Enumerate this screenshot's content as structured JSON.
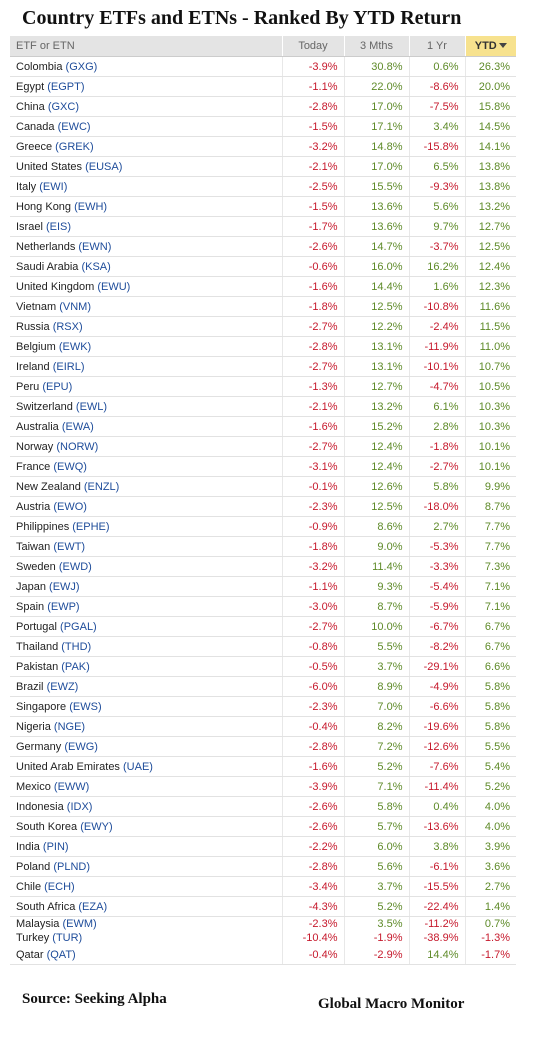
{
  "title": "Country ETFs and ETNs - Ranked By YTD Return",
  "headers": {
    "name": "ETF or ETN",
    "today": "Today",
    "three_months": "3 Mths",
    "one_year": "1 Yr",
    "ytd": "YTD"
  },
  "sorted_by": "YTD",
  "sort_direction": "descending",
  "colors": {
    "positive": "#5e8a28",
    "negative": "#c6192c",
    "ticker": "#1e4c9a",
    "header_bg": "#e4e4e4",
    "sorted_header_bg": "#f7e28e"
  },
  "rows": [
    {
      "country": "Colombia",
      "ticker": "(GXG)",
      "today": "-3.9%",
      "three_months": "30.8%",
      "one_year": "0.6%",
      "ytd": "26.3%"
    },
    {
      "country": "Egypt",
      "ticker": "(EGPT)",
      "today": "-1.1%",
      "three_months": "22.0%",
      "one_year": "-8.6%",
      "ytd": "20.0%"
    },
    {
      "country": "China",
      "ticker": "(GXC)",
      "today": "-2.8%",
      "three_months": "17.0%",
      "one_year": "-7.5%",
      "ytd": "15.8%"
    },
    {
      "country": "Canada",
      "ticker": "(EWC)",
      "today": "-1.5%",
      "three_months": "17.1%",
      "one_year": "3.4%",
      "ytd": "14.5%"
    },
    {
      "country": "Greece",
      "ticker": "(GREK)",
      "today": "-3.2%",
      "three_months": "14.8%",
      "one_year": "-15.8%",
      "ytd": "14.1%"
    },
    {
      "country": "United States",
      "ticker": "(EUSA)",
      "today": "-2.1%",
      "three_months": "17.0%",
      "one_year": "6.5%",
      "ytd": "13.8%"
    },
    {
      "country": "Italy",
      "ticker": "(EWI)",
      "today": "-2.5%",
      "three_months": "15.5%",
      "one_year": "-9.3%",
      "ytd": "13.8%"
    },
    {
      "country": "Hong Kong",
      "ticker": "(EWH)",
      "today": "-1.5%",
      "three_months": "13.6%",
      "one_year": "5.6%",
      "ytd": "13.2%"
    },
    {
      "country": "Israel",
      "ticker": "(EIS)",
      "today": "-1.7%",
      "three_months": "13.6%",
      "one_year": "9.7%",
      "ytd": "12.7%"
    },
    {
      "country": "Netherlands",
      "ticker": "(EWN)",
      "today": "-2.6%",
      "three_months": "14.7%",
      "one_year": "-3.7%",
      "ytd": "12.5%"
    },
    {
      "country": "Saudi Arabia",
      "ticker": "(KSA)",
      "today": "-0.6%",
      "three_months": "16.0%",
      "one_year": "16.2%",
      "ytd": "12.4%"
    },
    {
      "country": "United Kingdom",
      "ticker": "(EWU)",
      "today": "-1.6%",
      "three_months": "14.4%",
      "one_year": "1.6%",
      "ytd": "12.3%"
    },
    {
      "country": "Vietnam",
      "ticker": "(VNM)",
      "today": "-1.8%",
      "three_months": "12.5%",
      "one_year": "-10.8%",
      "ytd": "11.6%"
    },
    {
      "country": "Russia",
      "ticker": "(RSX)",
      "today": "-2.7%",
      "three_months": "12.2%",
      "one_year": "-2.4%",
      "ytd": "11.5%"
    },
    {
      "country": "Belgium",
      "ticker": "(EWK)",
      "today": "-2.8%",
      "three_months": "13.1%",
      "one_year": "-11.9%",
      "ytd": "11.0%"
    },
    {
      "country": "Ireland",
      "ticker": "(EIRL)",
      "today": "-2.7%",
      "three_months": "13.1%",
      "one_year": "-10.1%",
      "ytd": "10.7%"
    },
    {
      "country": "Peru",
      "ticker": "(EPU)",
      "today": "-1.3%",
      "three_months": "12.7%",
      "one_year": "-4.7%",
      "ytd": "10.5%"
    },
    {
      "country": "Switzerland",
      "ticker": "(EWL)",
      "today": "-2.1%",
      "three_months": "13.2%",
      "one_year": "6.1%",
      "ytd": "10.3%"
    },
    {
      "country": "Australia",
      "ticker": "(EWA)",
      "today": "-1.6%",
      "three_months": "15.2%",
      "one_year": "2.8%",
      "ytd": "10.3%"
    },
    {
      "country": "Norway",
      "ticker": "(NORW)",
      "today": "-2.7%",
      "three_months": "12.4%",
      "one_year": "-1.8%",
      "ytd": "10.1%"
    },
    {
      "country": "France",
      "ticker": "(EWQ)",
      "today": "-3.1%",
      "three_months": "12.4%",
      "one_year": "-2.7%",
      "ytd": "10.1%"
    },
    {
      "country": "New Zealand",
      "ticker": "(ENZL)",
      "today": "-0.1%",
      "three_months": "12.6%",
      "one_year": "5.8%",
      "ytd": "9.9%"
    },
    {
      "country": "Austria",
      "ticker": "(EWO)",
      "today": "-2.3%",
      "three_months": "12.5%",
      "one_year": "-18.0%",
      "ytd": "8.7%"
    },
    {
      "country": "Philippines",
      "ticker": "(EPHE)",
      "today": "-0.9%",
      "three_months": "8.6%",
      "one_year": "2.7%",
      "ytd": "7.7%"
    },
    {
      "country": "Taiwan",
      "ticker": "(EWT)",
      "today": "-1.8%",
      "three_months": "9.0%",
      "one_year": "-5.3%",
      "ytd": "7.7%"
    },
    {
      "country": "Sweden",
      "ticker": "(EWD)",
      "today": "-3.2%",
      "three_months": "11.4%",
      "one_year": "-3.3%",
      "ytd": "7.3%"
    },
    {
      "country": "Japan",
      "ticker": "(EWJ)",
      "today": "-1.1%",
      "three_months": "9.3%",
      "one_year": "-5.4%",
      "ytd": "7.1%"
    },
    {
      "country": "Spain",
      "ticker": "(EWP)",
      "today": "-3.0%",
      "three_months": "8.7%",
      "one_year": "-5.9%",
      "ytd": "7.1%"
    },
    {
      "country": "Portugal",
      "ticker": "(PGAL)",
      "today": "-2.7%",
      "three_months": "10.0%",
      "one_year": "-6.7%",
      "ytd": "6.7%"
    },
    {
      "country": "Thailand",
      "ticker": "(THD)",
      "today": "-0.8%",
      "three_months": "5.5%",
      "one_year": "-8.2%",
      "ytd": "6.7%"
    },
    {
      "country": "Pakistan",
      "ticker": "(PAK)",
      "today": "-0.5%",
      "three_months": "3.7%",
      "one_year": "-29.1%",
      "ytd": "6.6%"
    },
    {
      "country": "Brazil",
      "ticker": "(EWZ)",
      "today": "-6.0%",
      "three_months": "8.9%",
      "one_year": "-4.9%",
      "ytd": "5.8%"
    },
    {
      "country": "Singapore",
      "ticker": "(EWS)",
      "today": "-2.3%",
      "three_months": "7.0%",
      "one_year": "-6.6%",
      "ytd": "5.8%"
    },
    {
      "country": "Nigeria",
      "ticker": "(NGE)",
      "today": "-0.4%",
      "three_months": "8.2%",
      "one_year": "-19.6%",
      "ytd": "5.8%"
    },
    {
      "country": "Germany",
      "ticker": "(EWG)",
      "today": "-2.8%",
      "three_months": "7.2%",
      "one_year": "-12.6%",
      "ytd": "5.5%"
    },
    {
      "country": "United Arab Emirates",
      "ticker": "(UAE)",
      "today": "-1.6%",
      "three_months": "5.2%",
      "one_year": "-7.6%",
      "ytd": "5.4%"
    },
    {
      "country": "Mexico",
      "ticker": "(EWW)",
      "today": "-3.9%",
      "three_months": "7.1%",
      "one_year": "-11.4%",
      "ytd": "5.2%"
    },
    {
      "country": "Indonesia",
      "ticker": "(IDX)",
      "today": "-2.6%",
      "three_months": "5.8%",
      "one_year": "0.4%",
      "ytd": "4.0%"
    },
    {
      "country": "South Korea",
      "ticker": "(EWY)",
      "today": "-2.6%",
      "three_months": "5.7%",
      "one_year": "-13.6%",
      "ytd": "4.0%"
    },
    {
      "country": "India",
      "ticker": "(PIN)",
      "today": "-2.2%",
      "three_months": "6.0%",
      "one_year": "3.8%",
      "ytd": "3.9%"
    },
    {
      "country": "Poland",
      "ticker": "(PLND)",
      "today": "-2.8%",
      "three_months": "5.6%",
      "one_year": "-6.1%",
      "ytd": "3.6%"
    },
    {
      "country": "Chile",
      "ticker": "(ECH)",
      "today": "-3.4%",
      "three_months": "3.7%",
      "one_year": "-15.5%",
      "ytd": "2.7%"
    },
    {
      "country": "South Africa",
      "ticker": "(EZA)",
      "today": "-4.3%",
      "three_months": "5.2%",
      "one_year": "-22.4%",
      "ytd": "1.4%"
    },
    {
      "country": "Malaysia",
      "ticker": "(EWM)",
      "today": "-2.3%",
      "three_months": "3.5%",
      "one_year": "-11.2%",
      "ytd": "0.7%"
    },
    {
      "country": "Turkey",
      "ticker": "(TUR)",
      "today": "-10.4%",
      "three_months": "-1.9%",
      "one_year": "-38.9%",
      "ytd": "-1.3%"
    },
    {
      "country": "Qatar",
      "ticker": "(QAT)",
      "today": "-0.4%",
      "three_months": "-2.9%",
      "one_year": "14.4%",
      "ytd": "-1.7%"
    }
  ],
  "footer": {
    "source": "Source:  Seeking Alpha",
    "credit": "Global Macro Monitor"
  }
}
